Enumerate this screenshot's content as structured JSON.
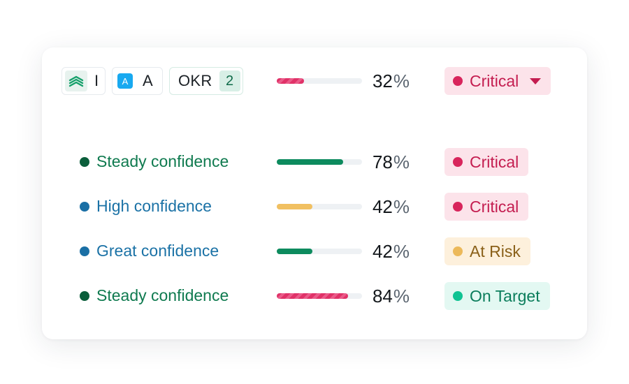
{
  "header": {
    "chip_i_label": "I",
    "chip_a_icon_letter": "A",
    "chip_a_label": "A",
    "chip_okr_label": "OKR",
    "chip_okr_count": "2",
    "progress": 0.32,
    "progress_color": "#e03268",
    "percent_value": "32",
    "percent_symbol": "%",
    "status": "Critical"
  },
  "rows": [
    {
      "confidence": "Steady confidence",
      "confidence_color": "#0f7a4f",
      "progress": 0.78,
      "progress_color": "#0d8b5e",
      "percent_value": "78",
      "percent_symbol": "%",
      "status": "Critical"
    },
    {
      "confidence": "High confidence",
      "confidence_color": "#1b72a6",
      "progress": 0.42,
      "progress_color": "#f1c061",
      "percent_value": "42",
      "percent_symbol": "%",
      "status": "Critical"
    },
    {
      "confidence": "Great confidence",
      "confidence_color": "#1b72a6",
      "progress": 0.42,
      "progress_color": "#0d8b5e",
      "percent_value": "42",
      "percent_symbol": "%",
      "status": "At Risk"
    },
    {
      "confidence": "Steady confidence",
      "confidence_color": "#0f7a4f",
      "progress": 0.84,
      "progress_color": "#e03268",
      "percent_value": "84",
      "percent_symbol": "%",
      "status": "On Target"
    }
  ]
}
